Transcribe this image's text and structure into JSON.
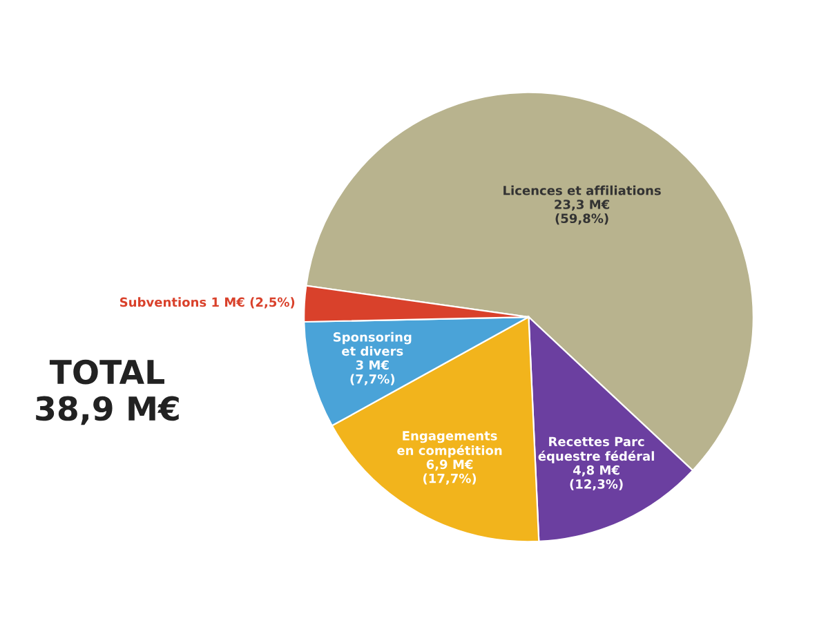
{
  "chart_data": {
    "type": "pie",
    "categories": [
      "Licences et affiliations",
      "Recettes Parc\néquestre fédéral",
      "Engagements\nen compétition",
      "Sponsoring\net divers",
      "Subventions"
    ],
    "values": [
      23.3,
      4.8,
      6.9,
      3,
      1
    ],
    "value_labels": [
      "23,3 M€\n(59,8%)",
      "4,8 M€\n(12,3%)",
      "6,9 M€\n(17,7%)",
      "3 M€\n(7,7%)",
      "1 M€ (2,5%)"
    ],
    "colors": [
      "#b8b38e",
      "#6b3fa0",
      "#f2b41c",
      "#4aa3d8",
      "#d9412b"
    ],
    "annotations": [
      "TOTAL\n38,9 M€"
    ],
    "legend": false
  }
}
